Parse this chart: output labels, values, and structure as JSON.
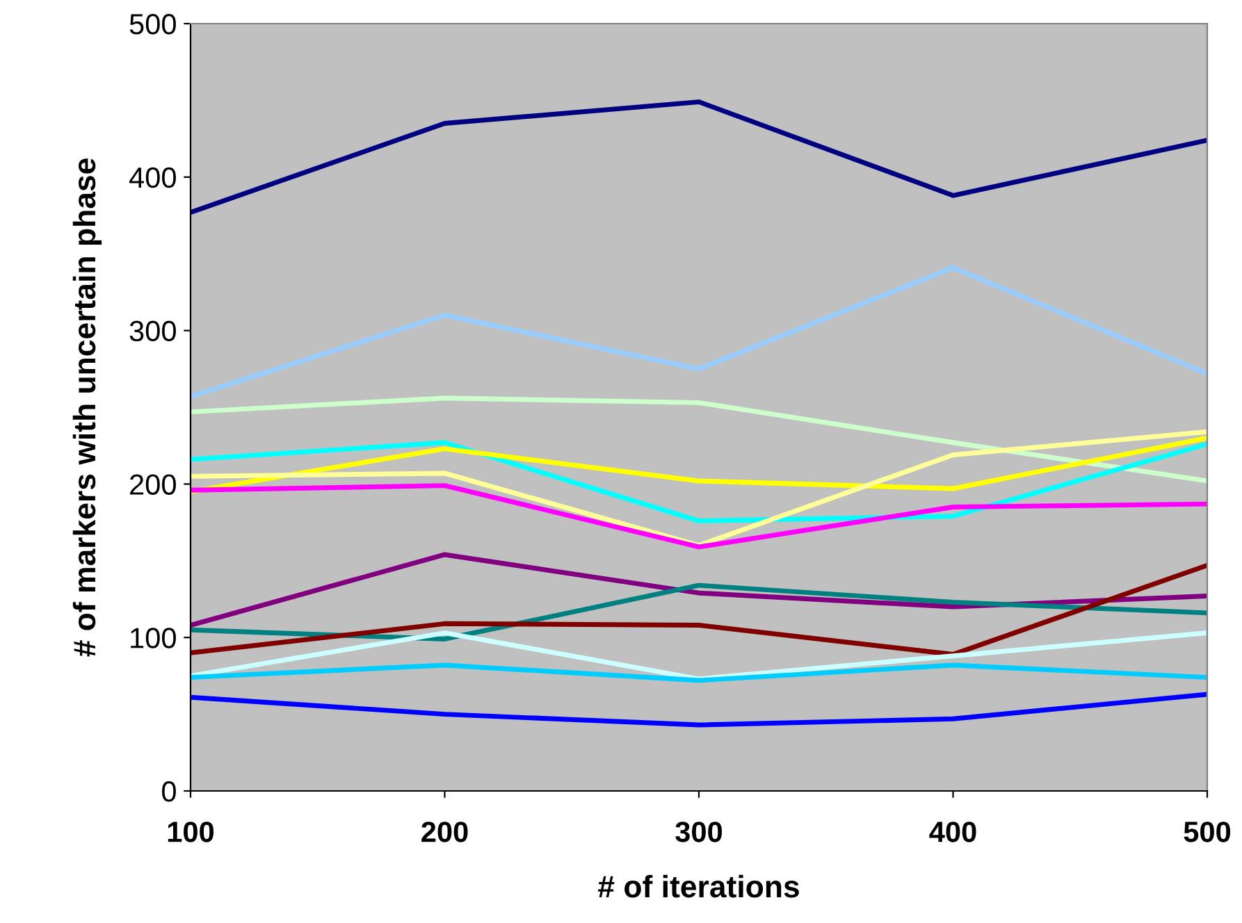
{
  "chart_data": {
    "type": "line",
    "xlabel": "# of iterations",
    "ylabel": "# of markers with uncertain phase",
    "x": [
      100,
      200,
      300,
      400,
      500
    ],
    "xlim": [
      100,
      500
    ],
    "xticks": [
      100,
      200,
      300,
      400,
      500
    ],
    "ylim": [
      0,
      500
    ],
    "yticks": [
      0,
      100,
      200,
      300,
      400,
      500
    ],
    "grid": false,
    "legend": false,
    "marker": "none",
    "line_style": "solid",
    "series": [
      {
        "color": "#000080",
        "values": [
          377,
          435,
          449,
          388,
          424
        ]
      },
      {
        "color": "#99ccff",
        "values": [
          257,
          310,
          275,
          341,
          272
        ]
      },
      {
        "color": "#ccffcc",
        "values": [
          247,
          256,
          253,
          227,
          202
        ]
      },
      {
        "color": "#00ffff",
        "values": [
          216,
          227,
          176,
          179,
          226
        ]
      },
      {
        "color": "#ffff00",
        "values": [
          195,
          223,
          202,
          197,
          230
        ]
      },
      {
        "color": "#ffff99",
        "values": [
          205,
          207,
          160,
          219,
          234
        ]
      },
      {
        "color": "#ff00ff",
        "values": [
          196,
          199,
          159,
          185,
          187
        ]
      },
      {
        "color": "#800080",
        "values": [
          108,
          154,
          129,
          120,
          127
        ]
      },
      {
        "color": "#008080",
        "values": [
          105,
          99,
          134,
          123,
          116
        ]
      },
      {
        "color": "#800000",
        "values": [
          90,
          109,
          108,
          89,
          147
        ]
      },
      {
        "color": "#ccffff",
        "values": [
          75,
          103,
          73,
          88,
          103
        ]
      },
      {
        "color": "#00ccff",
        "values": [
          74,
          82,
          72,
          82,
          74
        ]
      },
      {
        "color": "#0000ff",
        "values": [
          61,
          50,
          43,
          47,
          63
        ]
      }
    ]
  }
}
